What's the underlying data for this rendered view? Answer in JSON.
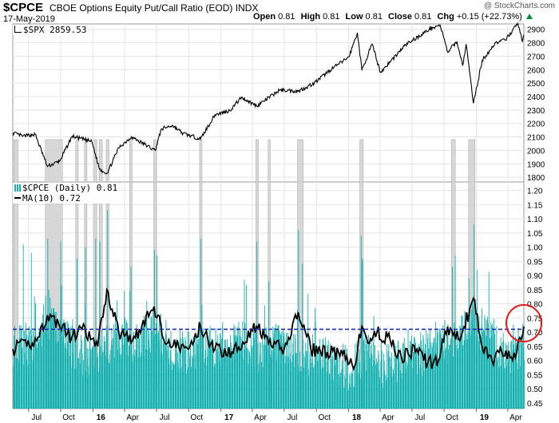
{
  "header": {
    "symbol": "$CPCE",
    "description": "CBOE Options Equity Put/Call Ratio (EOD)",
    "exchange": "INDX",
    "date": "17-May-2019",
    "open_label": "Open",
    "open": "0.81",
    "high_label": "High",
    "high": "0.81",
    "low_label": "Low",
    "low": "0.81",
    "close_label": "Close",
    "close": "0.81",
    "chg_label": "Chg",
    "chg": "+0.15 (+22.73%)",
    "brand": "@ StockCharts.com"
  },
  "colors": {
    "histogram": "#14b1b0",
    "ma_line": "#000000",
    "price_line": "#000000",
    "spike_band": "#d3d3d3",
    "dashed_line": "#1b2fb0",
    "highlight_circle": "#e01b1b",
    "grid": "#e4e4e4"
  },
  "chart_data": [
    {
      "type": "line",
      "panel": "upper",
      "legend": "$SPX 2859.53",
      "legend_icon": "spx-line-icon",
      "y_ticks": [
        "2900",
        "2800",
        "2700",
        "2600",
        "2500",
        "2400",
        "2300",
        "2200",
        "2100",
        "2000",
        "1900",
        "1800"
      ],
      "ylim": [
        1765,
        2940
      ],
      "x_ticks": [
        "Jul",
        "Oct",
        "16",
        "Apr",
        "Jul",
        "Oct",
        "17",
        "Apr",
        "Jul",
        "Oct",
        "18",
        "Apr",
        "Jul",
        "Oct",
        "19",
        "Apr"
      ],
      "x_tick_dates": [
        "2015-07-01",
        "2015-10-01",
        "2016-01-01",
        "2016-04-01",
        "2016-07-01",
        "2016-10-01",
        "2017-01-01",
        "2017-04-01",
        "2017-07-01",
        "2017-10-01",
        "2018-01-01",
        "2018-04-01",
        "2018-07-01",
        "2018-10-01",
        "2019-01-01",
        "2019-04-01"
      ],
      "x_range": [
        "2015-05-17",
        "2019-05-17"
      ],
      "series": [
        {
          "x": [
            "2015-05-17",
            "2015-06-15",
            "2015-07-20",
            "2015-08-24",
            "2015-09-28",
            "2015-11-03",
            "2015-12-29",
            "2016-01-20",
            "2016-02-11",
            "2016-03-15",
            "2016-04-20",
            "2016-06-27",
            "2016-07-15",
            "2016-08-15",
            "2016-09-15",
            "2016-11-04",
            "2016-12-15",
            "2017-01-26",
            "2017-03-01",
            "2017-04-13",
            "2017-06-19",
            "2017-08-10",
            "2017-09-25",
            "2017-11-08",
            "2018-01-02",
            "2018-01-26",
            "2018-02-08",
            "2018-03-09",
            "2018-04-02",
            "2018-06-13",
            "2018-08-29",
            "2018-09-20",
            "2018-10-11",
            "2018-11-07",
            "2018-11-23",
            "2018-12-03",
            "2018-12-24",
            "2019-01-18",
            "2019-02-25",
            "2019-03-25",
            "2019-04-30",
            "2019-05-13",
            "2019-05-17"
          ],
          "values": [
            2130,
            2105,
            2120,
            1880,
            1920,
            2105,
            2065,
            1860,
            1830,
            2020,
            2100,
            2000,
            2160,
            2185,
            2125,
            2085,
            2265,
            2295,
            2395,
            2330,
            2450,
            2440,
            2500,
            2595,
            2695,
            2875,
            2595,
            2790,
            2580,
            2785,
            2915,
            2930,
            2730,
            2810,
            2630,
            2790,
            2350,
            2670,
            2800,
            2820,
            2945,
            2810,
            2860
          ]
        }
      ]
    },
    {
      "type": "bar",
      "panel": "lower",
      "legend_bars": "$CPCE (Daily) 0.81",
      "legend_ma": "MA(10) 0.72",
      "y_ticks": [
        "1.20",
        "1.15",
        "1.10",
        "1.05",
        "1.00",
        "0.95",
        "0.90",
        "0.85",
        "0.80",
        "0.75",
        "0.70",
        "0.65",
        "0.60",
        "0.55",
        "0.50",
        "0.45"
      ],
      "ylim": [
        0.43,
        1.23
      ],
      "reference_line": 0.71,
      "baseline_values": [
        0.66,
        0.65,
        0.73,
        0.67,
        0.61,
        0.64,
        0.68,
        0.66,
        0.72,
        0.64,
        0.63,
        0.65,
        0.64,
        0.68,
        0.63,
        0.66,
        0.63,
        0.62,
        0.6,
        0.56,
        0.62,
        0.58,
        0.6,
        0.62,
        0.64,
        0.66,
        0.73,
        0.7,
        0.59,
        0.66
      ],
      "ma_x": [
        "2015-05-17",
        "2015-07-24",
        "2015-08-24",
        "2015-09-25",
        "2015-11-01",
        "2015-12-01",
        "2016-01-15",
        "2016-02-10",
        "2016-03-15",
        "2016-05-01",
        "2016-06-24",
        "2016-08-01",
        "2016-10-01",
        "2016-11-04",
        "2016-12-15",
        "2017-02-01",
        "2017-04-13",
        "2017-05-17",
        "2017-07-01",
        "2017-08-10",
        "2017-09-15",
        "2017-11-01",
        "2017-12-15",
        "2018-01-15",
        "2018-02-08",
        "2018-03-01",
        "2018-03-23",
        "2018-04-30",
        "2018-06-01",
        "2018-07-15",
        "2018-08-15",
        "2018-09-15",
        "2018-10-11",
        "2018-11-15",
        "2018-12-24",
        "2019-01-15",
        "2019-02-15",
        "2019-03-15",
        "2019-04-15",
        "2019-05-17"
      ],
      "ma_values": [
        0.64,
        0.67,
        0.76,
        0.73,
        0.68,
        0.71,
        0.65,
        0.85,
        0.7,
        0.68,
        0.79,
        0.66,
        0.64,
        0.72,
        0.64,
        0.63,
        0.72,
        0.66,
        0.64,
        0.77,
        0.64,
        0.63,
        0.62,
        0.57,
        0.72,
        0.66,
        0.7,
        0.67,
        0.61,
        0.64,
        0.59,
        0.6,
        0.72,
        0.67,
        0.82,
        0.66,
        0.6,
        0.63,
        0.6,
        0.72
      ],
      "spike_dates": [
        "2015-06-15",
        "2015-07-08",
        "2015-08-24",
        "2015-09-30",
        "2015-11-16",
        "2015-12-10",
        "2016-01-08",
        "2016-01-20",
        "2016-02-11",
        "2016-04-18",
        "2016-06-24",
        "2016-07-01",
        "2016-11-04",
        "2017-04-13",
        "2017-05-17",
        "2017-08-10",
        "2017-08-21",
        "2018-02-05",
        "2018-02-08",
        "2018-02-09",
        "2018-10-24",
        "2018-11-01",
        "2018-12-10",
        "2018-12-24",
        "2019-01-03"
      ],
      "spike_values": [
        1.01,
        0.98,
        1.03,
        1.02,
        0.96,
        1.0,
        1.03,
        1.02,
        1.13,
        0.93,
        0.99,
        0.97,
        1.03,
        1.02,
        0.88,
        1.06,
        0.94,
        1.04,
        0.96,
        0.95,
        0.93,
        0.97,
        0.89,
        1.08,
        0.92
      ]
    }
  ],
  "shaded_spans": [
    [
      "2015-05-20",
      "2015-06-01"
    ],
    [
      "2015-08-18",
      "2015-10-06"
    ],
    [
      "2015-11-13",
      "2015-11-20"
    ],
    [
      "2015-12-08",
      "2015-12-15"
    ],
    [
      "2016-01-04",
      "2016-01-12"
    ],
    [
      "2016-01-19",
      "2016-01-28"
    ],
    [
      "2016-02-08",
      "2016-02-16"
    ],
    [
      "2016-04-15",
      "2016-04-22"
    ],
    [
      "2016-06-23",
      "2016-07-01"
    ],
    [
      "2016-11-01",
      "2016-11-08"
    ],
    [
      "2017-04-11",
      "2017-04-18"
    ],
    [
      "2017-05-16",
      "2017-05-22"
    ],
    [
      "2017-08-08",
      "2017-08-24"
    ],
    [
      "2018-02-02",
      "2018-02-12"
    ],
    [
      "2018-10-22",
      "2018-11-02"
    ],
    [
      "2018-12-10",
      "2018-12-28"
    ]
  ],
  "watermark": "@ StockCharts.com"
}
